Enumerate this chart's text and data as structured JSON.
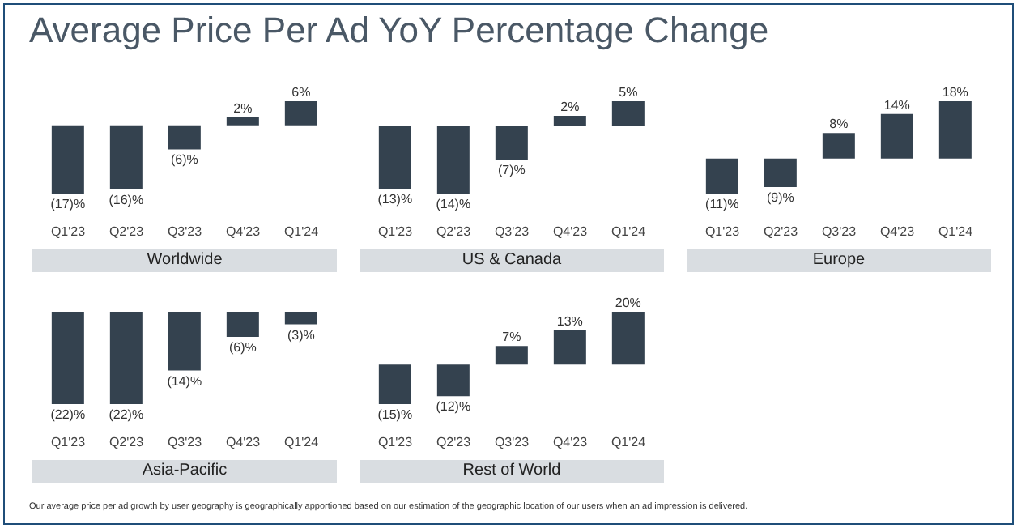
{
  "chart_data": [
    {
      "type": "bar",
      "title": "Average Price Per Ad YoY Percentage Change",
      "xlabel": "Worldwide",
      "categories": [
        "Q1'23",
        "Q2'23",
        "Q3'23",
        "Q4'23",
        "Q1'24"
      ],
      "values": [
        -17,
        -16,
        -6,
        2,
        6
      ],
      "value_labels": [
        "(17)%",
        "(16)%",
        "(6)%",
        "2%",
        "6%"
      ],
      "color": "#34424f",
      "annotations": [
        "Our average price per ad growth by user geography is geographically apportioned based on our estimation of the geographic location of our users when an ad impression is delivered."
      ]
    },
    {
      "type": "bar",
      "xlabel": "US & Canada",
      "categories": [
        "Q1'23",
        "Q2'23",
        "Q3'23",
        "Q4'23",
        "Q1'24"
      ],
      "values": [
        -13,
        -14,
        -7,
        2,
        5
      ],
      "value_labels": [
        "(13)%",
        "(14)%",
        "(7)%",
        "2%",
        "5%"
      ],
      "color": "#34424f"
    },
    {
      "type": "bar",
      "xlabel": "Europe",
      "categories": [
        "Q1'23",
        "Q2'23",
        "Q3'23",
        "Q4'23",
        "Q1'24"
      ],
      "values": [
        -11,
        -9,
        8,
        14,
        18
      ],
      "value_labels": [
        "(11)%",
        "(9)%",
        "8%",
        "14%",
        "18%"
      ],
      "color": "#34424f"
    },
    {
      "type": "bar",
      "xlabel": "Asia-Pacific",
      "categories": [
        "Q1'23",
        "Q2'23",
        "Q3'23",
        "Q4'23",
        "Q1'24"
      ],
      "values": [
        -22,
        -22,
        -14,
        -6,
        -3
      ],
      "value_labels": [
        "(22)%",
        "(22)%",
        "(14)%",
        "(6)%",
        "(3)%"
      ],
      "color": "#34424f"
    },
    {
      "type": "bar",
      "xlabel": "Rest of World",
      "categories": [
        "Q1'23",
        "Q2'23",
        "Q3'23",
        "Q4'23",
        "Q1'24"
      ],
      "values": [
        -15,
        -12,
        7,
        13,
        20
      ],
      "value_labels": [
        "(15)%",
        "(12)%",
        "7%",
        "13%",
        "20%"
      ],
      "color": "#34424f"
    }
  ]
}
